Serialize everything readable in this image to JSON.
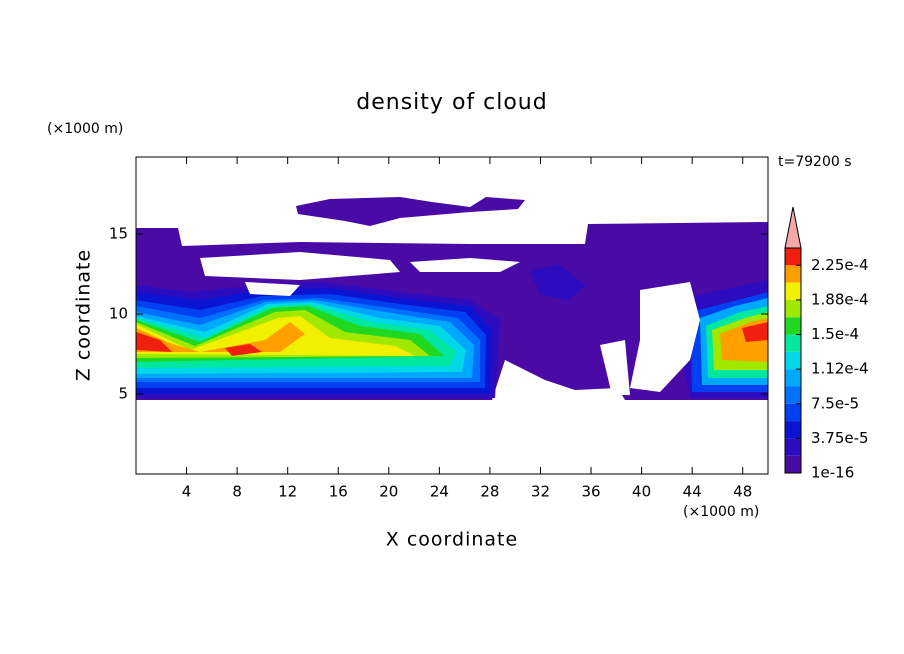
{
  "chart_data": {
    "type": "contour",
    "title": "density of cloud",
    "x_label": "X coordinate",
    "y_label": "Z coordinate",
    "x_unit": "(×1000 m)",
    "y_unit": "(×1000 m)",
    "time_label": "t=79200 s",
    "xlim": [
      0,
      50
    ],
    "ylim": [
      0,
      20
    ],
    "xticks": [
      4,
      8,
      12,
      16,
      20,
      24,
      28,
      32,
      36,
      40,
      44,
      48
    ],
    "yticks": [
      5,
      10,
      15
    ],
    "colorbar": {
      "clim": [
        1e-16,
        0.00024375
      ],
      "levels": [
        1e-16,
        1.875e-05,
        3.75e-05,
        5.625e-05,
        7.5e-05,
        9.375e-05,
        0.0001125,
        0.00013125,
        0.00015,
        0.00016875,
        0.0001875,
        0.00020625,
        0.000225
      ],
      "colors": [
        "#4a0aa6",
        "#2c0cbe",
        "#0a14d2",
        "#0040f0",
        "#0070ff",
        "#00a8ff",
        "#00d8e8",
        "#00e8a0",
        "#20d820",
        "#a0e800",
        "#f0f000",
        "#ffa000",
        "#f02010"
      ],
      "ticks": [
        1e-16,
        {
          "value": 3.75e-05,
          "label": "3.75e-5"
        },
        {
          "value": 7.5e-05,
          "label": "7.5e-5"
        },
        {
          "value": 0.0001125,
          "label": "1.12e-4"
        },
        {
          "value": 0.00015,
          "label": "1.5e-4"
        },
        {
          "value": 0.0001875,
          "label": "1.88e-4"
        },
        {
          "value": 0.000225,
          "label": "2.25e-4"
        }
      ],
      "extend": "max",
      "extend_color": "#f4a8a8"
    }
  }
}
